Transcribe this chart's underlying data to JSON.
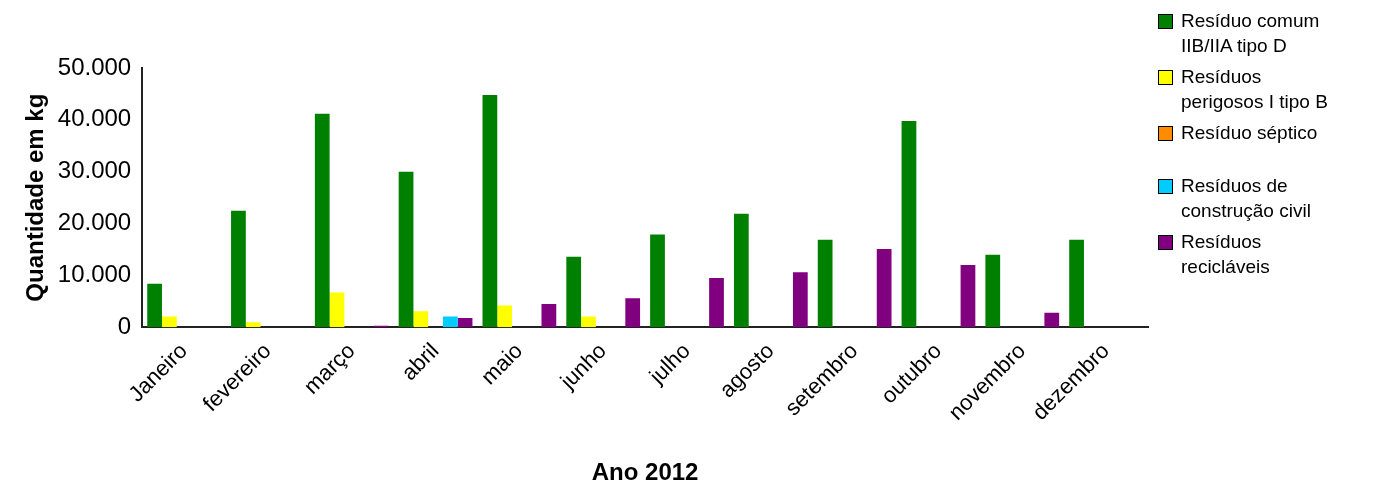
{
  "chart_data": {
    "type": "bar",
    "xlabel": "Ano 2012",
    "ylabel": "Quantidade em kg",
    "categories": [
      "Janeiro",
      "fevereiro",
      "março",
      "abril",
      "maio",
      "junho",
      "julho",
      "agosto",
      "setembro",
      "outubro",
      "novembro",
      "dezembro"
    ],
    "series": [
      {
        "name": "Resíduo comum IIB/IIA tipo D",
        "color": "#008000",
        "values": [
          8400,
          22500,
          41200,
          30000,
          44800,
          13600,
          17900,
          21900,
          16900,
          39800,
          14000,
          16900
        ]
      },
      {
        "name": "Resíduos perigosos I tipo B",
        "color": "#ffff00",
        "values": [
          2100,
          1000,
          6700,
          3100,
          4200,
          2100,
          null,
          null,
          null,
          null,
          null,
          null
        ]
      },
      {
        "name": "Resíduo séptico",
        "color": "#ff8c00",
        "values": [
          null,
          null,
          null,
          null,
          null,
          null,
          null,
          null,
          null,
          null,
          null,
          null
        ]
      },
      {
        "name": "Resíduos de construção civil",
        "color": "#00ccff",
        "values": [
          null,
          null,
          null,
          2100,
          null,
          null,
          null,
          null,
          null,
          null,
          null,
          null
        ]
      },
      {
        "name": "Resíduos recicláveis",
        "color": "#800080",
        "values": [
          null,
          null,
          300,
          1800,
          4500,
          5600,
          9500,
          10600,
          15100,
          12000,
          2800,
          null
        ]
      }
    ],
    "ylim": [
      0,
      50000
    ],
    "yticks": [
      {
        "value": 0,
        "label": "0"
      },
      {
        "value": 10000,
        "label": "10.000"
      },
      {
        "value": 20000,
        "label": "20.000"
      },
      {
        "value": 30000,
        "label": "30.000"
      },
      {
        "value": 40000,
        "label": "40.000"
      },
      {
        "value": 50000,
        "label": "50.000"
      }
    ],
    "grid": false,
    "legend": "right"
  }
}
